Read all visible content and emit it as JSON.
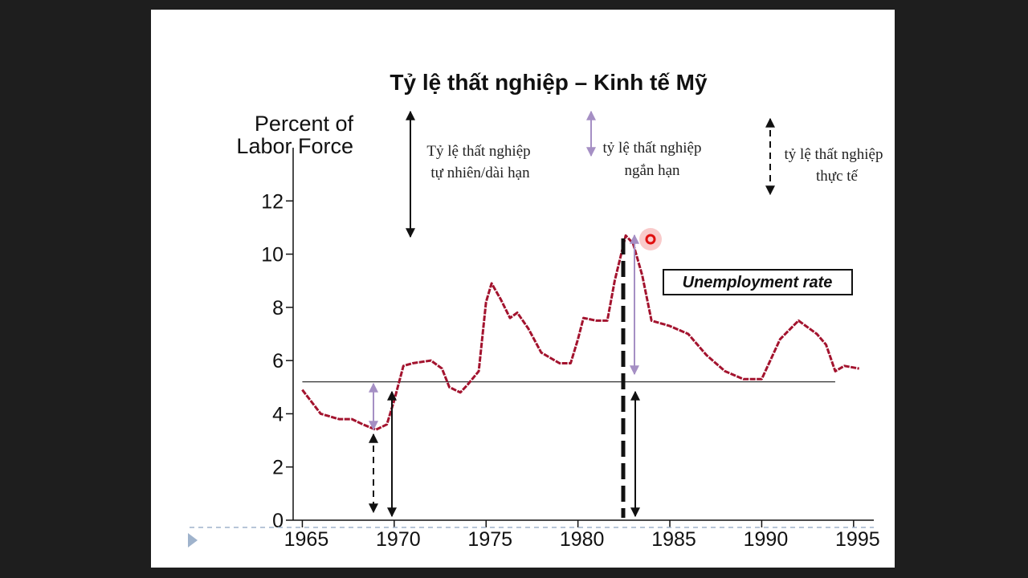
{
  "chart_data": {
    "type": "line",
    "title": "Tỷ lệ thất nghiệp – Kinh tế Mỹ",
    "y_label": [
      "Percent of",
      "Labor Force"
    ],
    "series": [
      {
        "name": "Unemployment rate",
        "color": "#a3132e",
        "x": [
          1965,
          1966,
          1967,
          1967.7,
          1968.3,
          1969,
          1969.6,
          1970,
          1970.5,
          1971,
          1972,
          1972.6,
          1973,
          1973.6,
          1974,
          1974.6,
          1975,
          1975.3,
          1975.8,
          1976.3,
          1976.7,
          1977.3,
          1978,
          1979,
          1979.6,
          1980,
          1980.3,
          1981,
          1981.6,
          1982,
          1982.6,
          1983,
          1983.5,
          1984,
          1985,
          1986,
          1987,
          1988,
          1989,
          1990,
          1991,
          1992,
          1993,
          1993.5,
          1994,
          1994.5,
          1995.3
        ],
        "values": [
          4.9,
          4.0,
          3.8,
          3.8,
          3.6,
          3.4,
          3.6,
          4.5,
          5.8,
          5.9,
          6.0,
          5.7,
          5.0,
          4.8,
          5.1,
          5.6,
          8.2,
          8.9,
          8.3,
          7.6,
          7.8,
          7.2,
          6.3,
          5.9,
          5.9,
          6.8,
          7.6,
          7.5,
          7.5,
          9.0,
          10.7,
          10.4,
          9.2,
          7.5,
          7.3,
          7.0,
          6.2,
          5.6,
          5.3,
          5.3,
          6.8,
          7.5,
          7.0,
          6.6,
          5.6,
          5.8,
          5.7
        ]
      }
    ],
    "natural_rate": {
      "value": 5.2,
      "x": [
        1965,
        1994
      ]
    },
    "label": "Unemployment rate",
    "annotations": [
      {
        "lines": [
          "Tỷ lệ thất nghiệp",
          "tự nhiên/dài hạn"
        ]
      },
      {
        "lines": [
          "tỷ lệ thất nghiệp",
          "ngắn hạn"
        ]
      },
      {
        "lines": [
          "tỷ lệ thất nghiệp",
          "thực tế"
        ]
      }
    ],
    "xlim": [
      1964.5,
      1996.1
    ],
    "ylim": [
      0,
      14
    ],
    "xticks": [
      1965,
      1970,
      1975,
      1980,
      1985,
      1990,
      1995
    ],
    "yticks": [
      0,
      2,
      4,
      6,
      8,
      10,
      12
    ]
  }
}
